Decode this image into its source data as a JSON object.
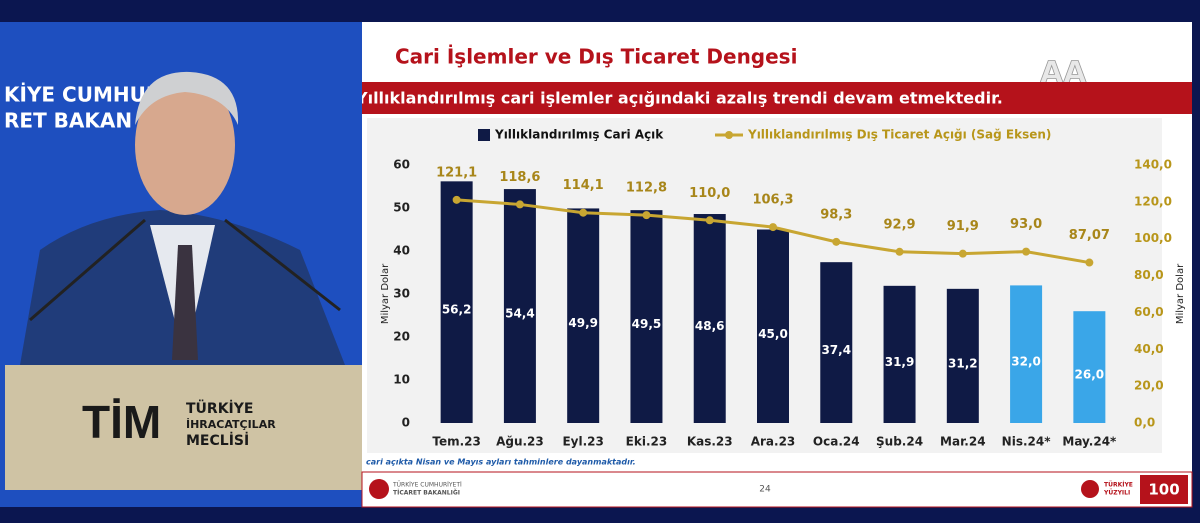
{
  "header": {
    "title": "Cari İşlemler ve Dış Ticaret Dengesi",
    "subtitle": "Yıllıklandırılmış cari işlemler açığındaki azalış trendi devam etmektedir."
  },
  "chart_data": {
    "type": "bar",
    "legend": "top",
    "grid": false,
    "ylabel": "Milyar Dolar",
    "y2label": "Milyar Dolar",
    "categories": [
      "Tem.23",
      "Ağu.23",
      "Eyl.23",
      "Eki.23",
      "Kas.23",
      "Ara.23",
      "Oca.24",
      "Şub.24",
      "Mar.24",
      "Nis.24*",
      "May.24*"
    ],
    "series": [
      {
        "name": "Yıllıklandırılmış Cari Açık",
        "type": "bar",
        "color": "#0f1a45",
        "colors": [
          "#0f1a45",
          "#0f1a45",
          "#0f1a45",
          "#0f1a45",
          "#0f1a45",
          "#0f1a45",
          "#0f1a45",
          "#0f1a45",
          "#0f1a45",
          "#3aa6e8",
          "#3aa6e8"
        ],
        "values": [
          56.2,
          54.4,
          49.9,
          49.5,
          48.6,
          45.0,
          37.4,
          31.9,
          31.2,
          32.0,
          26.0
        ],
        "value_labels": [
          "56,2",
          "54,4",
          "49,9",
          "49,5",
          "48,6",
          "45,0",
          "37,4",
          "31,9",
          "31,2",
          "32,0",
          "26,0"
        ]
      },
      {
        "name": "Yıllıklandırılmış Dış Ticaret Açığı (Sağ Eksen)",
        "type": "line",
        "axis": "y2",
        "color": "#c8a632",
        "values": [
          121.1,
          118.6,
          114.1,
          112.8,
          110.0,
          106.3,
          98.3,
          92.9,
          91.9,
          93.0,
          87.07
        ],
        "value_labels": [
          "121,1",
          "118,6",
          "114,1",
          "112,8",
          "110,0",
          "106,3",
          "98,3",
          "92,9",
          "91,9",
          "93,0",
          "87,07"
        ]
      }
    ],
    "ylim": [
      0,
      60
    ],
    "yticks": [
      0,
      10,
      20,
      30,
      40,
      50,
      60
    ],
    "y2lim": [
      0,
      140
    ],
    "y2ticks": [
      {
        "value": 0,
        "label": "0,0"
      },
      {
        "value": 20,
        "label": "20,0"
      },
      {
        "value": 40,
        "label": "40,0"
      },
      {
        "value": 60,
        "label": "60,0"
      },
      {
        "value": 80,
        "label": "80,0"
      },
      {
        "value": 100,
        "label": "100,0"
      },
      {
        "value": 120,
        "label": "120,0"
      },
      {
        "value": 140,
        "label": "140,0"
      }
    ]
  },
  "footnote": "cari açıkta Nisan ve Mayıs ayları tahminlere dayanmaktadır.",
  "page_number": "24",
  "footer": {
    "ministry_line1": "TÜRKİYE CUMHURİYETİ",
    "ministry_line2": "TİCARET BAKANLIĞI",
    "brand_line1": "TÜRKİYE",
    "brand_line2": "YÜZYILI",
    "centennial": "100"
  },
  "watermark": "AA",
  "backdrop": {
    "screen_text_1": "KİYE CUMHURİ",
    "screen_text_2": "RET BAKAN",
    "podium_logo": "TİM",
    "podium_line1": "TÜRKİYE",
    "podium_line2": "İHRACATÇILAR",
    "podium_line3": "MECLİSİ"
  }
}
